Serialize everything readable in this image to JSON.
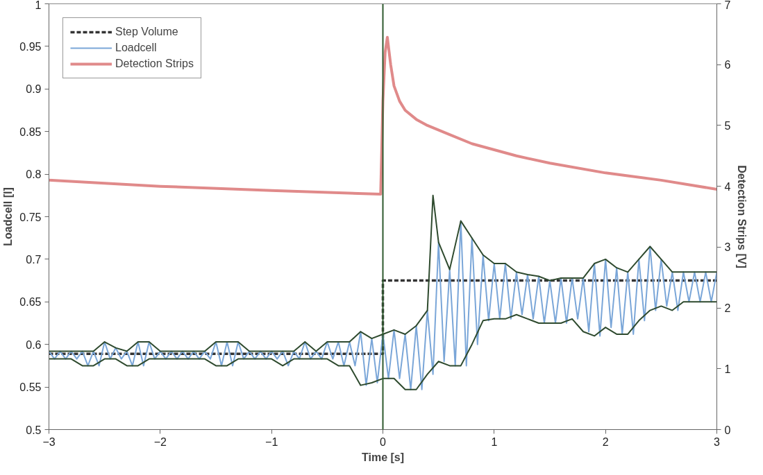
{
  "chart_data": {
    "type": "line",
    "xlabel": "Time [s]",
    "ylabel": "Loadcell [l]",
    "y2label": "Detection Strips [V]",
    "xlim": [
      -3,
      3
    ],
    "xticks": [
      -3,
      -2,
      -1,
      0,
      1,
      2,
      3
    ],
    "ylim": [
      0.5,
      1
    ],
    "yticks": [
      {
        "value": 0.5,
        "label": "0.5"
      },
      0.55,
      {
        "value": 0.6,
        "label": "0.6"
      },
      0.65,
      {
        "value": 0.7,
        "label": "0.7"
      },
      0.75,
      {
        "value": 0.8,
        "label": "0.8"
      },
      0.85,
      {
        "value": 0.9,
        "label": "0.9"
      },
      0.95,
      1
    ],
    "y2lim": [
      0,
      7
    ],
    "y2ticks": [
      0,
      1,
      2,
      3,
      4,
      5,
      6,
      7
    ],
    "grid": false,
    "legend": "top left",
    "marker": "none",
    "ref_lines": [
      {
        "axis": "x",
        "value": 0,
        "color": "#2e5a2e"
      }
    ],
    "series": [
      {
        "name": "Step Volume",
        "color": "#333333",
        "line_style": "dashed",
        "x": [
          -3,
          0,
          0,
          3
        ],
        "values": [
          0.589,
          0.589,
          0.675,
          0.675
        ]
      },
      {
        "name": "Loadcell",
        "color": "#7aa6d8",
        "x": [
          -3,
          -2.95,
          -2.9,
          -2.85,
          -2.8,
          -2.75,
          -2.7,
          -2.65,
          -2.6,
          -2.55,
          -2.5,
          -2.45,
          -2.4,
          -2.35,
          -2.3,
          -2.25,
          -2.2,
          -2.15,
          -2.1,
          -2.05,
          -2,
          -1.95,
          -1.9,
          -1.85,
          -1.8,
          -1.75,
          -1.7,
          -1.65,
          -1.6,
          -1.55,
          -1.5,
          -1.45,
          -1.4,
          -1.35,
          -1.3,
          -1.25,
          -1.2,
          -1.15,
          -1.1,
          -1.05,
          -1,
          -0.95,
          -0.9,
          -0.85,
          -0.8,
          -0.75,
          -0.7,
          -0.65,
          -0.6,
          -0.55,
          -0.5,
          -0.45,
          -0.4,
          -0.35,
          -0.3,
          -0.25,
          -0.2,
          -0.15,
          -0.1,
          -0.05,
          0,
          0.05,
          0.1,
          0.15,
          0.2,
          0.25,
          0.3,
          0.35,
          0.4,
          0.45,
          0.5,
          0.55,
          0.6,
          0.65,
          0.7,
          0.75,
          0.8,
          0.85,
          0.9,
          0.95,
          1,
          1.05,
          1.1,
          1.15,
          1.2,
          1.25,
          1.3,
          1.35,
          1.4,
          1.45,
          1.5,
          1.55,
          1.6,
          1.65,
          1.7,
          1.75,
          1.8,
          1.85,
          1.9,
          1.95,
          2,
          2.05,
          2.1,
          2.15,
          2.2,
          2.25,
          2.3,
          2.35,
          2.4,
          2.45,
          2.5,
          2.55,
          2.6,
          2.65,
          2.7,
          2.75,
          2.8,
          2.85,
          2.9,
          2.95,
          3
        ],
        "values": [
          0.592,
          0.583,
          0.592,
          0.583,
          0.592,
          0.583,
          0.592,
          0.575,
          0.592,
          0.575,
          0.603,
          0.583,
          0.596,
          0.583,
          0.592,
          0.575,
          0.603,
          0.575,
          0.603,
          0.583,
          0.592,
          0.583,
          0.592,
          0.583,
          0.592,
          0.583,
          0.592,
          0.583,
          0.592,
          0.583,
          0.603,
          0.575,
          0.603,
          0.575,
          0.603,
          0.583,
          0.592,
          0.583,
          0.592,
          0.583,
          0.592,
          0.583,
          0.592,
          0.575,
          0.592,
          0.583,
          0.603,
          0.583,
          0.592,
          0.583,
          0.603,
          0.583,
          0.603,
          0.575,
          0.603,
          0.575,
          0.615,
          0.552,
          0.607,
          0.555,
          0.612,
          0.56,
          0.617,
          0.56,
          0.612,
          0.547,
          0.622,
          0.547,
          0.64,
          0.565,
          0.72,
          0.58,
          0.688,
          0.575,
          0.745,
          0.575,
          0.725,
          0.6,
          0.705,
          0.628,
          0.695,
          0.63,
          0.695,
          0.63,
          0.685,
          0.635,
          0.682,
          0.63,
          0.68,
          0.625,
          0.675,
          0.625,
          0.678,
          0.625,
          0.678,
          0.63,
          0.678,
          0.615,
          0.695,
          0.61,
          0.7,
          0.62,
          0.69,
          0.612,
          0.685,
          0.612,
          0.7,
          0.628,
          0.715,
          0.64,
          0.7,
          0.645,
          0.685,
          0.64,
          0.685,
          0.65,
          0.685,
          0.65,
          0.685,
          0.65,
          0.685
        ]
      },
      {
        "color": "#2e4a2e",
        "x": [
          -3,
          -2.9,
          -2.8,
          -2.7,
          -2.6,
          -2.5,
          -2.4,
          -2.3,
          -2.2,
          -2.1,
          -2,
          -1.9,
          -1.8,
          -1.7,
          -1.6,
          -1.5,
          -1.4,
          -1.3,
          -1.2,
          -1.1,
          -1,
          -0.9,
          -0.8,
          -0.7,
          -0.6,
          -0.5,
          -0.4,
          -0.3,
          -0.2,
          -0.1,
          0,
          0.1,
          0.2,
          0.3,
          0.4,
          0.45,
          0.5,
          0.6,
          0.7,
          0.8,
          0.9,
          1,
          1.1,
          1.2,
          1.3,
          1.4,
          1.5,
          1.6,
          1.7,
          1.8,
          1.9,
          2,
          2.1,
          2.2,
          2.3,
          2.4,
          2.5,
          2.6,
          2.7,
          2.8,
          2.9,
          3
        ],
        "values": [
          0.592,
          0.592,
          0.592,
          0.592,
          0.592,
          0.603,
          0.596,
          0.592,
          0.603,
          0.603,
          0.592,
          0.592,
          0.592,
          0.592,
          0.592,
          0.603,
          0.603,
          0.603,
          0.592,
          0.592,
          0.592,
          0.592,
          0.592,
          0.603,
          0.592,
          0.603,
          0.603,
          0.603,
          0.615,
          0.607,
          0.612,
          0.617,
          0.612,
          0.622,
          0.64,
          0.775,
          0.72,
          0.688,
          0.745,
          0.725,
          0.705,
          0.695,
          0.695,
          0.685,
          0.682,
          0.68,
          0.675,
          0.678,
          0.678,
          0.678,
          0.695,
          0.7,
          0.69,
          0.685,
          0.7,
          0.715,
          0.7,
          0.685,
          0.685,
          0.685,
          0.685,
          0.685
        ]
      },
      {
        "color": "#2e4a2e",
        "x": [
          -3,
          -2.9,
          -2.8,
          -2.7,
          -2.6,
          -2.5,
          -2.4,
          -2.3,
          -2.2,
          -2.1,
          -2,
          -1.9,
          -1.8,
          -1.7,
          -1.6,
          -1.5,
          -1.4,
          -1.3,
          -1.2,
          -1.1,
          -1,
          -0.9,
          -0.8,
          -0.7,
          -0.6,
          -0.5,
          -0.4,
          -0.3,
          -0.2,
          -0.1,
          0,
          0.1,
          0.2,
          0.3,
          0.4,
          0.5,
          0.6,
          0.7,
          0.8,
          0.9,
          1,
          1.1,
          1.2,
          1.3,
          1.4,
          1.5,
          1.6,
          1.7,
          1.8,
          1.9,
          2,
          2.1,
          2.2,
          2.3,
          2.4,
          2.5,
          2.6,
          2.7,
          2.8,
          2.9,
          3
        ],
        "values": [
          0.583,
          0.583,
          0.583,
          0.575,
          0.575,
          0.583,
          0.583,
          0.575,
          0.575,
          0.583,
          0.583,
          0.583,
          0.583,
          0.583,
          0.583,
          0.575,
          0.575,
          0.583,
          0.583,
          0.583,
          0.583,
          0.575,
          0.583,
          0.583,
          0.583,
          0.583,
          0.575,
          0.575,
          0.552,
          0.555,
          0.56,
          0.56,
          0.547,
          0.547,
          0.565,
          0.58,
          0.575,
          0.575,
          0.6,
          0.628,
          0.63,
          0.63,
          0.635,
          0.63,
          0.625,
          0.625,
          0.625,
          0.63,
          0.615,
          0.61,
          0.62,
          0.612,
          0.612,
          0.628,
          0.64,
          0.645,
          0.64,
          0.65,
          0.65,
          0.65,
          0.65
        ]
      },
      {
        "name": "Detection Strips",
        "color": "#e08a8a",
        "axis": "y2",
        "x": [
          -3,
          -2,
          -1,
          -0.02,
          0,
          0.02,
          0.04,
          0.07,
          0.1,
          0.15,
          0.2,
          0.3,
          0.4,
          0.6,
          0.8,
          1,
          1.2,
          1.5,
          2,
          2.5,
          3
        ],
        "values": [
          4.1,
          4.0,
          3.93,
          3.87,
          5.4,
          6.2,
          6.45,
          6.0,
          5.65,
          5.4,
          5.25,
          5.1,
          5.0,
          4.85,
          4.7,
          4.6,
          4.5,
          4.38,
          4.22,
          4.1,
          3.95
        ]
      }
    ]
  }
}
